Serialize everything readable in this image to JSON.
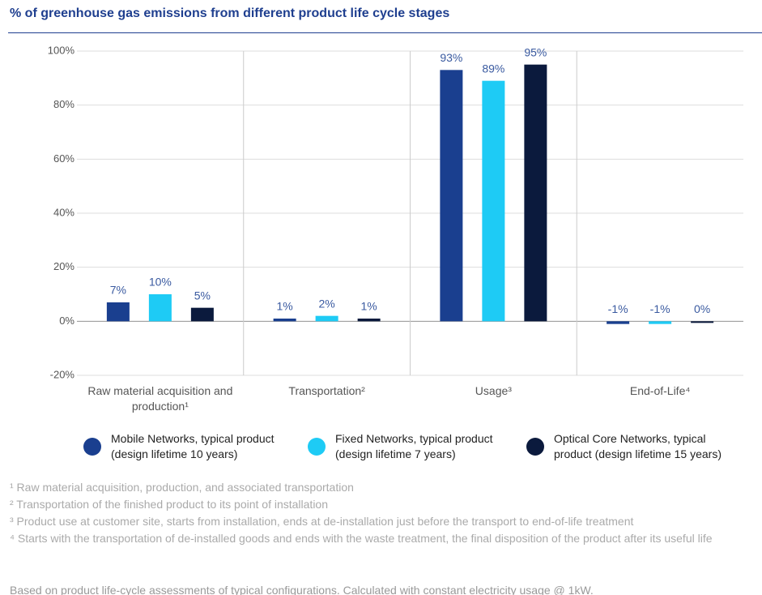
{
  "chart_data": {
    "type": "bar",
    "title": "% of greenhouse gas emissions from different product life cycle stages",
    "categories": [
      "Raw material acquisition and production¹",
      "Transportation²",
      "Usage³",
      "End-of-Life⁴"
    ],
    "series": [
      {
        "name": "Mobile Networks, typical product (design lifetime 10 years)",
        "color": "#1a3f8f",
        "values": [
          7,
          1,
          93,
          -1
        ],
        "value_labels": [
          "7%",
          "1%",
          "93%",
          "-1%"
        ]
      },
      {
        "name": "Fixed Networks, typical product (design lifetime 7 years)",
        "color": "#1ecbf5",
        "values": [
          10,
          2,
          89,
          -1
        ],
        "value_labels": [
          "10%",
          "2%",
          "89%",
          "-1%"
        ]
      },
      {
        "name": "Optical Core Networks, typical product (design lifetime 15 years)",
        "color": "#0b1a3d",
        "values": [
          5,
          1,
          95,
          0
        ],
        "value_labels": [
          "5%",
          "1%",
          "95%",
          "0%"
        ]
      }
    ],
    "ylim": [
      -20,
      100
    ],
    "yticks": [
      {
        "value": -20,
        "label": "-20%"
      },
      {
        "value": 0,
        "label": "0%"
      },
      {
        "value": 20,
        "label": "20%"
      },
      {
        "value": 40,
        "label": "40%"
      },
      {
        "value": 60,
        "label": "60%"
      },
      {
        "value": 80,
        "label": "80%"
      },
      {
        "value": 100,
        "label": "100%"
      }
    ],
    "grid": true,
    "footnotes": [
      "¹ Raw material acquisition, production, and associated transportation",
      "² Transportation of the finished product to its point of installation",
      "³ Product use at customer site, starts from installation, ends at de-installation just before the transport to end-of-life treatment",
      "⁴ Starts with the transportation of de-installed goods and ends with the waste treatment, the final disposition of the product after its useful life"
    ],
    "note": "Based on product life-cycle assessments of typical configurations. Calculated with constant electricity usage @ 1kW."
  }
}
